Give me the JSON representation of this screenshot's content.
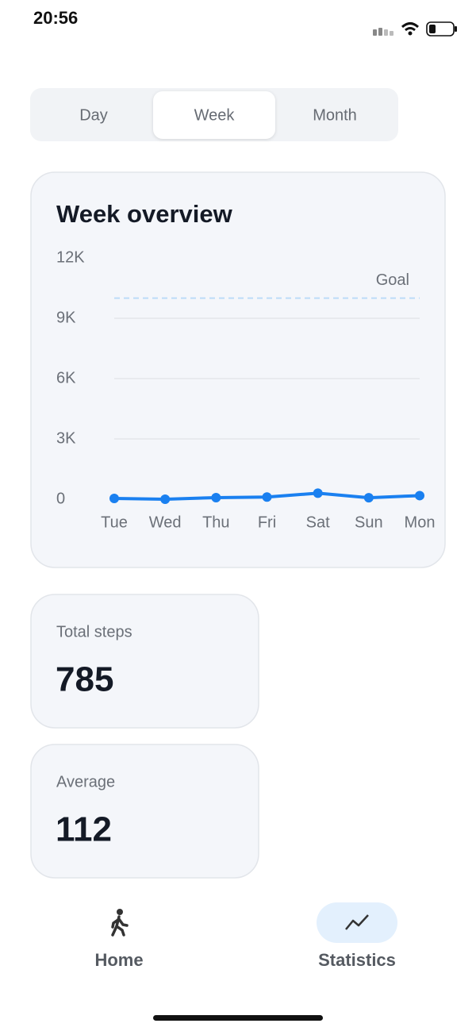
{
  "status_bar": {
    "time": "20:56"
  },
  "tabs": {
    "items": [
      "Day",
      "Week",
      "Month"
    ],
    "selected": 1
  },
  "chart_data": {
    "type": "line",
    "title": "Week overview",
    "categories": [
      "Tue",
      "Wed",
      "Thu",
      "Fri",
      "Sat",
      "Sun",
      "Mon"
    ],
    "series": [
      {
        "color": "#1a80f0",
        "values": [
          40,
          0,
          80,
          110,
          300,
          75,
          180
        ]
      }
    ],
    "ylim": [
      0,
      12000
    ],
    "yticks": [
      0,
      {
        "value": 3000,
        "label": "3K"
      },
      {
        "value": 6000,
        "label": "6K"
      },
      {
        "value": 9000,
        "label": "9K"
      },
      {
        "value": 12000,
        "label": "12K"
      }
    ],
    "grid": true,
    "goal": {
      "value": 10000,
      "label": "Goal"
    }
  },
  "stats": [
    {
      "label": "Total steps",
      "value": "785"
    },
    {
      "label": "Average",
      "value": "112"
    }
  ],
  "nav": {
    "items": [
      "Home",
      "Statistics"
    ],
    "selected": 1
  }
}
